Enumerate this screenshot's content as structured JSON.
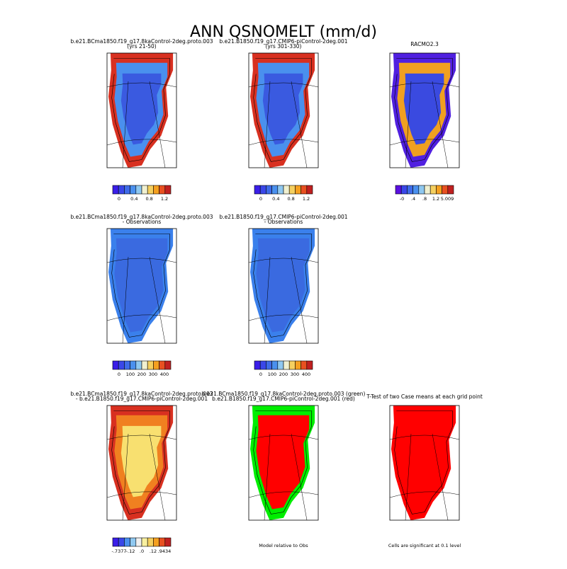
{
  "title": "ANN QSNOMELT (mm/d)",
  "panels": [
    {
      "lines": [
        "b.e21.BCma1850.f19_g17.8kaControl-2deg.proto.003",
        "(yrs 21-50)"
      ],
      "inner": "#3a5ae0",
      "edge": "#d83020",
      "mid": "#4a90ee",
      "colorbar": {
        "colors": [
          "#3a1ee8",
          "#3a47e8",
          "#3f6be8",
          "#4a90ee",
          "#8fc8f0",
          "#f0f0d0",
          "#f5d060",
          "#f5a020",
          "#e85020",
          "#c02020"
        ],
        "labels": [
          "0",
          "0.4",
          "0.8",
          "1.2"
        ]
      }
    },
    {
      "lines": [
        "b.e21.B1850.f19_g17.CMIP6-piControl-2deg.001",
        "(yrs 301-330)"
      ],
      "inner": "#3a5ae0",
      "edge": "#d83020",
      "mid": "#4a90ee",
      "colorbar": {
        "colors": [
          "#3a1ee8",
          "#3a47e8",
          "#3f6be8",
          "#4a90ee",
          "#8fc8f0",
          "#f0f0d0",
          "#f5d060",
          "#f5a020",
          "#e85020",
          "#c02020"
        ],
        "labels": [
          "0",
          "0.4",
          "0.8",
          "1.2"
        ]
      }
    },
    {
      "lines": [
        "RACMO2.3"
      ],
      "inner": "#3a4ae0",
      "edge": "#5020e0",
      "mid": "#f0a020",
      "colorbar": {
        "colors": [
          "#5a10e0",
          "#3a47e8",
          "#3f6be8",
          "#4a90ee",
          "#8fc8f0",
          "#f0f0d0",
          "#f5d060",
          "#f5a020",
          "#e85020",
          "#c02020"
        ],
        "labels": [
          "-0",
          ".4",
          ".8",
          "1.2",
          "5.009"
        ]
      }
    },
    {
      "lines": [
        "b.e21.BCma1850.f19_g17.8kaControl-2deg.proto.003",
        "- Observations"
      ],
      "inner": "#3a6ae0",
      "edge": "#3a80ec",
      "mid": "#3a6ae0",
      "colorbar": {
        "colors": [
          "#3a1ee8",
          "#3a47e8",
          "#3f6be8",
          "#4a90ee",
          "#8fc8f0",
          "#f0f0d0",
          "#f5d060",
          "#f5a020",
          "#e85020",
          "#c02020"
        ],
        "labels": [
          "0",
          "100",
          "200",
          "300",
          "400"
        ]
      }
    },
    {
      "lines": [
        "b.e21.B1850.f19_g17.CMIP6-piControl-2deg.001",
        "- Observations"
      ],
      "inner": "#3a6ae0",
      "edge": "#3a80ec",
      "mid": "#3a6ae0",
      "colorbar": {
        "colors": [
          "#3a1ee8",
          "#3a47e8",
          "#3f6be8",
          "#4a90ee",
          "#8fc8f0",
          "#f0f0d0",
          "#f5d060",
          "#f5a020",
          "#e85020",
          "#c02020"
        ],
        "labels": [
          "0",
          "100",
          "200",
          "300",
          "400"
        ]
      }
    },
    null,
    {
      "lines": [
        "b.e21.BCma1850.f19_g17.8kaControl-2deg.proto.003",
        "- b.e21.B1850.f19_g17.CMIP6-piControl-2deg.001"
      ],
      "inner": "#f8e070",
      "edge": "#d83020",
      "mid": "#f08020",
      "colorbar": {
        "colors": [
          "#3a1ee8",
          "#3a47e8",
          "#4a90ee",
          "#8fc8f0",
          "#f0f0f0",
          "#f8f0a0",
          "#f5d060",
          "#f5a020",
          "#e85020",
          "#c02020"
        ],
        "labels": [
          "-.7377",
          "-.12",
          ".0",
          ".12",
          ".9434"
        ]
      }
    },
    {
      "lines": [
        "b.e21.BCma1850.f19_g17.8kaControl-2deg.proto.003 (green)",
        "b.e21.B1850.f19_g17.CMIP6-piControl-2deg.001 (red)"
      ],
      "inner": "#ff0000",
      "edge": "#00ee00",
      "mid": "#ff0000",
      "note": "Model relative to Obs"
    },
    {
      "lines": [
        "T-Test of two Case means at each grid point"
      ],
      "inner": "#ff0000",
      "edge": "#ff0000",
      "mid": "#ff0000",
      "note": "Cells are significant at 0.1 level"
    }
  ]
}
